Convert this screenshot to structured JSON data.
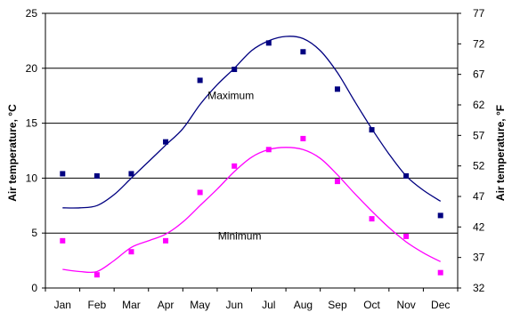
{
  "chart_data": {
    "type": "scatter",
    "categories": [
      "Jan",
      "Feb",
      "Mar",
      "Apr",
      "May",
      "Jun",
      "Jul",
      "Aug",
      "Sep",
      "Oct",
      "Nov",
      "Dec"
    ],
    "ylabel": "Air temperature, °C",
    "ylabel_right": "Air temperature, °F",
    "ylim": [
      0,
      25
    ],
    "yticks": [
      0,
      5,
      10,
      15,
      20,
      25
    ],
    "ylim_right": [
      32,
      77
    ],
    "yticks_right": [
      32,
      37,
      42,
      47,
      52,
      57,
      62,
      67,
      72,
      77
    ],
    "grid": "horizontal",
    "series": [
      {
        "name": "Maximum",
        "color": "#000080",
        "marker": "square",
        "points": [
          10.4,
          10.2,
          10.4,
          13.3,
          18.9,
          19.9,
          22.3,
          21.5,
          18.1,
          14.4,
          10.2,
          6.6
        ],
        "curve_x": [
          0.0,
          0.5,
          1.0,
          1.5,
          2.0,
          2.5,
          3.0,
          3.5,
          4.0,
          4.5,
          5.0,
          5.5,
          6.0,
          6.5,
          7.0,
          7.5,
          8.0,
          8.5,
          9.0,
          9.5,
          10.0,
          10.5,
          11.0
        ],
        "curve_y": [
          7.3,
          7.3,
          7.5,
          8.5,
          10.0,
          11.5,
          13.0,
          14.5,
          16.7,
          18.5,
          20.0,
          21.6,
          22.5,
          22.9,
          22.7,
          21.6,
          19.6,
          17.0,
          14.5,
          12.2,
          10.2,
          8.9,
          7.9
        ]
      },
      {
        "name": "Minimum",
        "color": "#ff00ff",
        "marker": "square",
        "points": [
          4.3,
          1.2,
          3.3,
          4.3,
          8.7,
          11.1,
          12.6,
          13.6,
          9.7,
          6.3,
          4.7,
          1.4
        ],
        "curve_x": [
          0.0,
          0.5,
          1.0,
          1.5,
          2.0,
          2.5,
          3.0,
          3.5,
          4.0,
          4.5,
          5.0,
          5.5,
          6.0,
          6.5,
          7.0,
          7.5,
          8.0,
          8.5,
          9.0,
          9.5,
          10.0,
          10.5,
          11.0
        ],
        "curve_y": [
          1.7,
          1.5,
          1.5,
          2.5,
          3.7,
          4.3,
          4.9,
          6.0,
          7.5,
          9.0,
          10.6,
          11.9,
          12.6,
          12.8,
          12.6,
          11.8,
          10.3,
          8.6,
          7.0,
          5.5,
          4.2,
          3.2,
          2.4
        ]
      }
    ]
  }
}
